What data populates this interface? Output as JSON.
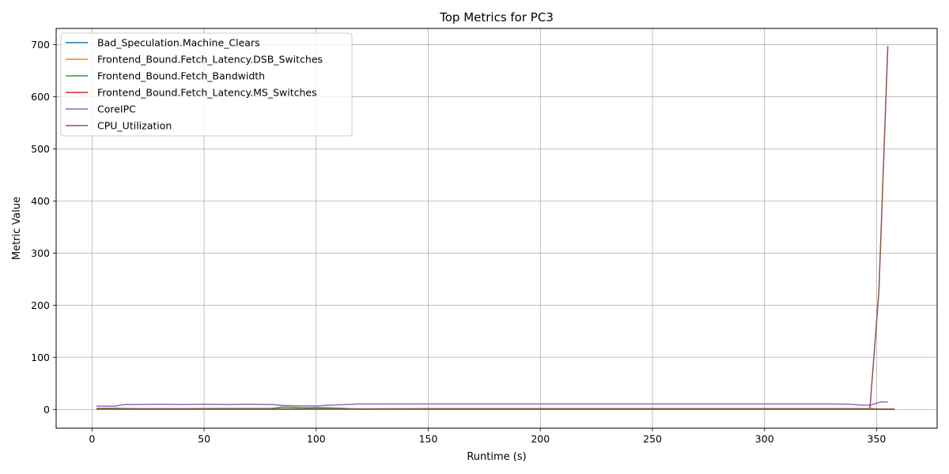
{
  "chart_data": {
    "type": "line",
    "title": "Top Metrics for PC3",
    "xlabel": "Runtime (s)",
    "ylabel": "Metric Value",
    "xlim": [
      -16,
      377
    ],
    "ylim": [
      -36,
      731
    ],
    "xticks": [
      0,
      50,
      100,
      150,
      200,
      250,
      300,
      350
    ],
    "yticks": [
      0,
      100,
      200,
      300,
      400,
      500,
      600,
      700
    ],
    "grid": true,
    "legend_position": "upper left",
    "series": [
      {
        "name": "Bad_Speculation.Machine_Clears",
        "color": "#1f77b4",
        "points": [
          [
            2,
            0.5
          ],
          [
            20,
            0.6
          ],
          [
            60,
            0.5
          ],
          [
            100,
            0.6
          ],
          [
            150,
            0.5
          ],
          [
            200,
            0.5
          ],
          [
            250,
            0.5
          ],
          [
            300,
            0.5
          ],
          [
            347,
            0.6
          ],
          [
            352,
            0.4
          ],
          [
            358,
            0.3
          ]
        ]
      },
      {
        "name": "Frontend_Bound.Fetch_Latency.DSB_Switches",
        "color": "#ff7f0e",
        "points": [
          [
            2,
            0.8
          ],
          [
            20,
            0.9
          ],
          [
            60,
            0.8
          ],
          [
            100,
            0.9
          ],
          [
            150,
            0.8
          ],
          [
            200,
            0.8
          ],
          [
            250,
            0.8
          ],
          [
            300,
            0.8
          ],
          [
            347,
            0.9
          ],
          [
            352,
            0.5
          ],
          [
            358,
            0.4
          ]
        ]
      },
      {
        "name": "Frontend_Bound.Fetch_Bandwidth",
        "color": "#2ca02c",
        "points": [
          [
            2,
            2
          ],
          [
            10,
            2
          ],
          [
            20,
            1.5
          ],
          [
            40,
            1.5
          ],
          [
            60,
            1.8
          ],
          [
            80,
            1.8
          ],
          [
            85,
            4.5
          ],
          [
            90,
            4
          ],
          [
            95,
            3
          ],
          [
            100,
            3.5
          ],
          [
            105,
            3
          ],
          [
            110,
            2.5
          ],
          [
            118,
            1
          ],
          [
            150,
            1.5
          ],
          [
            200,
            1.5
          ],
          [
            250,
            1.5
          ],
          [
            300,
            1.5
          ],
          [
            340,
            1.5
          ],
          [
            347,
            1.5
          ],
          [
            350,
            1
          ],
          [
            355,
            0.5
          ],
          [
            358,
            0.5
          ]
        ]
      },
      {
        "name": "Frontend_Bound.Fetch_Latency.MS_Switches",
        "color": "#d62728",
        "points": [
          [
            2,
            0.3
          ],
          [
            50,
            0.3
          ],
          [
            100,
            0.4
          ],
          [
            150,
            0.3
          ],
          [
            200,
            0.3
          ],
          [
            250,
            0.3
          ],
          [
            300,
            0.3
          ],
          [
            347,
            0.3
          ],
          [
            352,
            0.2
          ],
          [
            358,
            0.2
          ]
        ]
      },
      {
        "name": "CoreIPC",
        "color": "#9467bd",
        "points": [
          [
            2,
            6.5
          ],
          [
            10,
            6
          ],
          [
            14,
            9
          ],
          [
            20,
            9.5
          ],
          [
            30,
            10
          ],
          [
            40,
            9.5
          ],
          [
            50,
            10
          ],
          [
            60,
            9.5
          ],
          [
            70,
            10
          ],
          [
            80,
            9.5
          ],
          [
            85,
            7.5
          ],
          [
            90,
            7
          ],
          [
            100,
            6.5
          ],
          [
            105,
            8
          ],
          [
            112,
            9
          ],
          [
            118,
            10.5
          ],
          [
            150,
            10.5
          ],
          [
            200,
            10.5
          ],
          [
            250,
            10.5
          ],
          [
            300,
            10.5
          ],
          [
            330,
            10.5
          ],
          [
            338,
            10
          ],
          [
            342,
            8.5
          ],
          [
            347,
            8
          ],
          [
            352,
            14.5
          ],
          [
            355,
            14
          ]
        ]
      },
      {
        "name": "CPU_Utilization",
        "color": "#8c564b",
        "points": [
          [
            2,
            1
          ],
          [
            50,
            1
          ],
          [
            100,
            1
          ],
          [
            150,
            1
          ],
          [
            200,
            1
          ],
          [
            250,
            1
          ],
          [
            300,
            1
          ],
          [
            347,
            1
          ],
          [
            351,
            225
          ],
          [
            355,
            697
          ]
        ]
      }
    ]
  }
}
